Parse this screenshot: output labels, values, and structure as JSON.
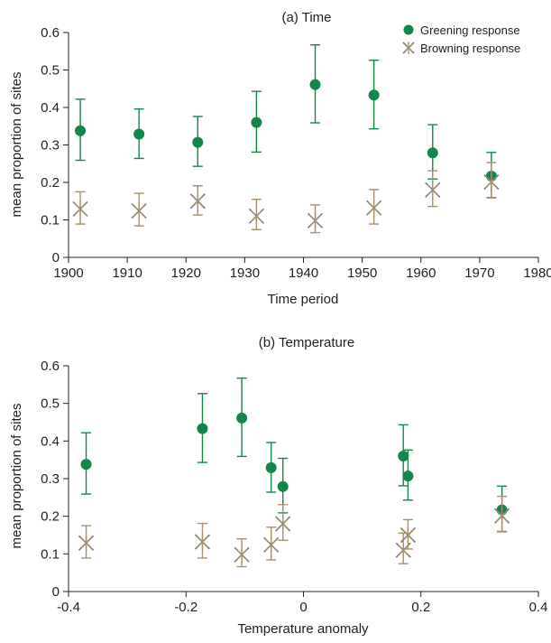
{
  "colors": {
    "greening": "#13864a",
    "browning": "#a8906a",
    "browning_dark": "#7c7c7c",
    "axis": "#222222"
  },
  "chart_data": [
    {
      "type": "scatter",
      "title": "(a) Time",
      "xlabel": "Time period",
      "ylabel": "mean proportion of sites",
      "xlim": [
        1900,
        1980
      ],
      "ylim": [
        0,
        0.6
      ],
      "xticks": [
        "1900",
        "1910",
        "1920",
        "1930",
        "1940",
        "1950",
        "1960",
        "1970",
        "1980"
      ],
      "yticks": [
        "0",
        "0.1",
        "0.2",
        "0.3",
        "0.4",
        "0.5",
        "0.6"
      ],
      "legend": {
        "position": "top-right",
        "entries": [
          "Greening response",
          "Browning response"
        ]
      },
      "series": [
        {
          "name": "Greening response",
          "marker": "circle",
          "points": [
            {
              "x": 1902,
              "y": 0.338,
              "lo": 0.259,
              "hi": 0.422
            },
            {
              "x": 1912,
              "y": 0.329,
              "lo": 0.264,
              "hi": 0.396
            },
            {
              "x": 1922,
              "y": 0.307,
              "lo": 0.243,
              "hi": 0.376
            },
            {
              "x": 1932,
              "y": 0.36,
              "lo": 0.281,
              "hi": 0.443
            },
            {
              "x": 1942,
              "y": 0.461,
              "lo": 0.359,
              "hi": 0.567
            },
            {
              "x": 1952,
              "y": 0.433,
              "lo": 0.343,
              "hi": 0.526
            },
            {
              "x": 1962,
              "y": 0.279,
              "lo": 0.209,
              "hi": 0.354
            },
            {
              "x": 1972,
              "y": 0.217,
              "lo": 0.159,
              "hi": 0.28
            }
          ]
        },
        {
          "name": "Browning response",
          "marker": "star",
          "points": [
            {
              "x": 1902,
              "y": 0.129,
              "lo": 0.089,
              "hi": 0.175
            },
            {
              "x": 1912,
              "y": 0.124,
              "lo": 0.084,
              "hi": 0.171
            },
            {
              "x": 1922,
              "y": 0.15,
              "lo": 0.113,
              "hi": 0.191
            },
            {
              "x": 1932,
              "y": 0.11,
              "lo": 0.074,
              "hi": 0.155
            },
            {
              "x": 1942,
              "y": 0.098,
              "lo": 0.066,
              "hi": 0.14
            },
            {
              "x": 1952,
              "y": 0.132,
              "lo": 0.089,
              "hi": 0.181
            },
            {
              "x": 1962,
              "y": 0.18,
              "lo": 0.136,
              "hi": 0.231
            },
            {
              "x": 1972,
              "y": 0.201,
              "lo": 0.16,
              "hi": 0.253
            }
          ]
        }
      ]
    },
    {
      "type": "scatter",
      "title": "(b) Temperature",
      "xlabel": "Temperature anomaly",
      "ylabel": "mean proportion of sites",
      "xlim": [
        -0.4,
        0.4
      ],
      "ylim": [
        0,
        0.6
      ],
      "xticks": [
        "-0.4",
        "-0.2",
        "0",
        "0.2",
        "0.4"
      ],
      "yticks": [
        "0",
        "0.1",
        "0.2",
        "0.3",
        "0.4",
        "0.5",
        "0.6"
      ],
      "series": [
        {
          "name": "Greening response",
          "marker": "circle",
          "points": [
            {
              "x": -0.37,
              "y": 0.338,
              "lo": 0.259,
              "hi": 0.422
            },
            {
              "x": -0.172,
              "y": 0.433,
              "lo": 0.343,
              "hi": 0.526
            },
            {
              "x": -0.105,
              "y": 0.461,
              "lo": 0.359,
              "hi": 0.567
            },
            {
              "x": -0.055,
              "y": 0.329,
              "lo": 0.264,
              "hi": 0.396
            },
            {
              "x": -0.035,
              "y": 0.279,
              "lo": 0.209,
              "hi": 0.354
            },
            {
              "x": 0.17,
              "y": 0.36,
              "lo": 0.281,
              "hi": 0.443
            },
            {
              "x": 0.178,
              "y": 0.307,
              "lo": 0.243,
              "hi": 0.376
            },
            {
              "x": 0.338,
              "y": 0.217,
              "lo": 0.159,
              "hi": 0.28
            }
          ]
        },
        {
          "name": "Browning response",
          "marker": "star",
          "points": [
            {
              "x": -0.37,
              "y": 0.129,
              "lo": 0.089,
              "hi": 0.175
            },
            {
              "x": -0.172,
              "y": 0.132,
              "lo": 0.089,
              "hi": 0.181
            },
            {
              "x": -0.105,
              "y": 0.098,
              "lo": 0.066,
              "hi": 0.14
            },
            {
              "x": -0.055,
              "y": 0.124,
              "lo": 0.084,
              "hi": 0.171
            },
            {
              "x": -0.035,
              "y": 0.18,
              "lo": 0.136,
              "hi": 0.231
            },
            {
              "x": 0.17,
              "y": 0.11,
              "lo": 0.074,
              "hi": 0.155
            },
            {
              "x": 0.178,
              "y": 0.15,
              "lo": 0.113,
              "hi": 0.191
            },
            {
              "x": 0.338,
              "y": 0.201,
              "lo": 0.16,
              "hi": 0.253
            }
          ]
        }
      ]
    }
  ]
}
